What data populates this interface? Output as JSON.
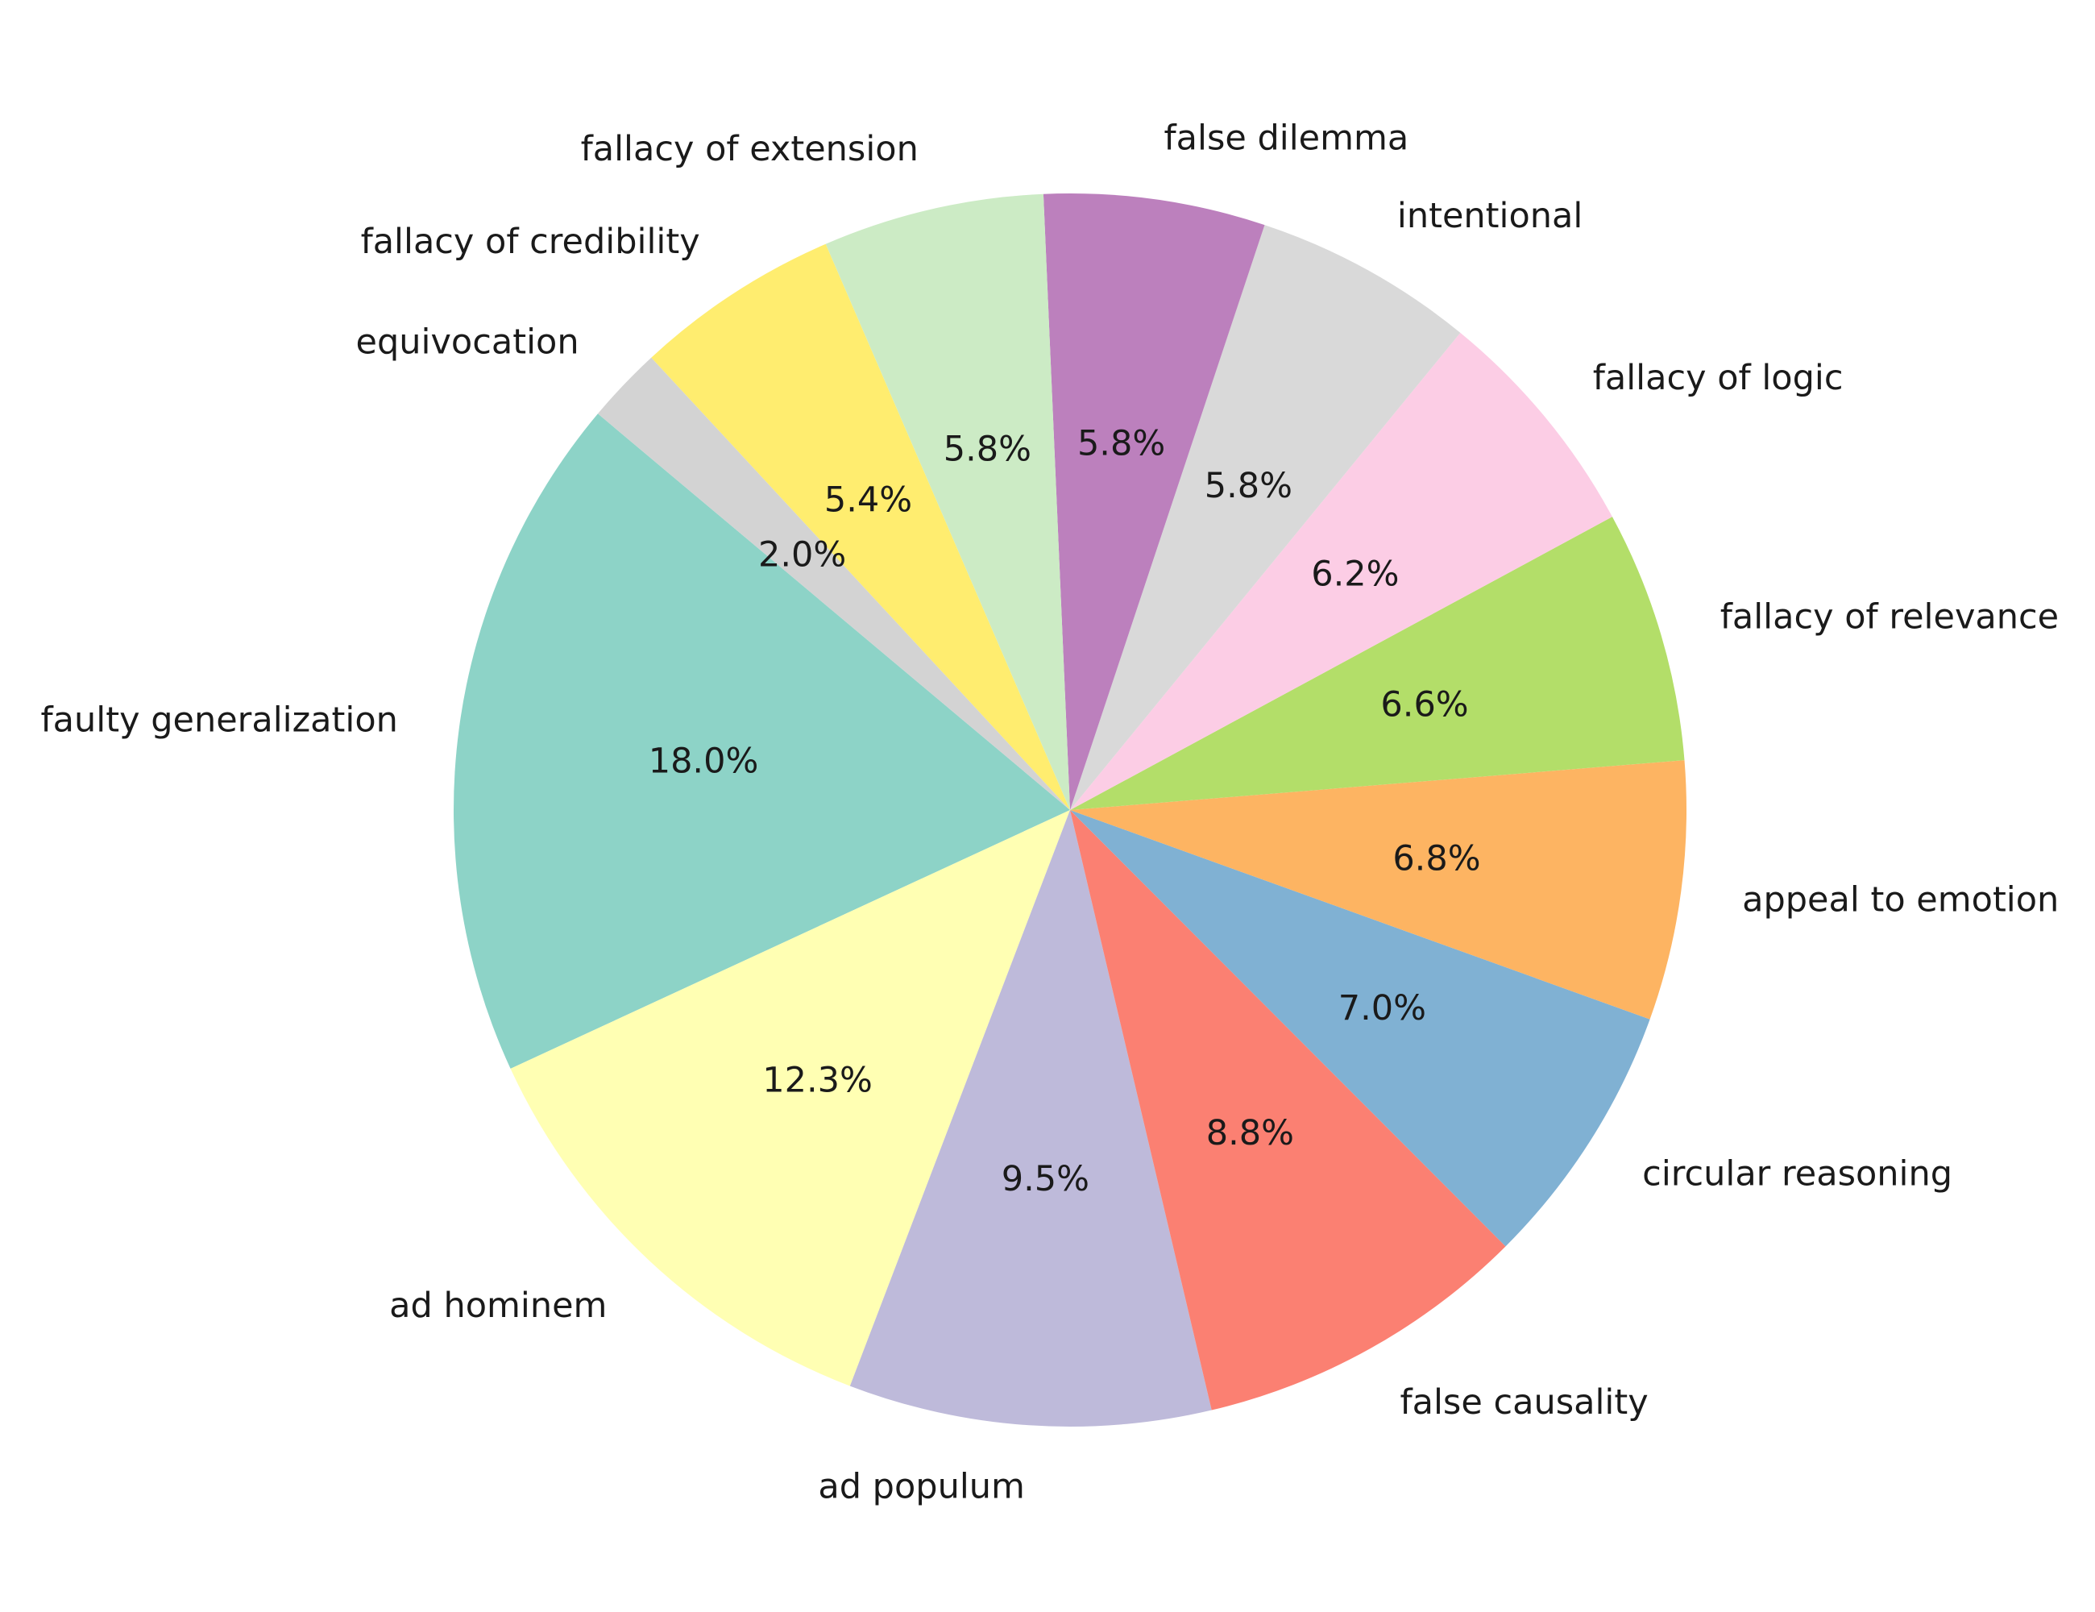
{
  "chart_data": {
    "type": "pie",
    "categories": [
      "faulty generalization",
      "ad hominem",
      "ad populum",
      "false causality",
      "circular reasoning",
      "appeal to emotion",
      "fallacy of relevance",
      "fallacy of logic",
      "intentional",
      "false dilemma",
      "fallacy of extension",
      "fallacy of credibility",
      "equivocation"
    ],
    "values": [
      18.0,
      12.3,
      9.5,
      8.8,
      7.0,
      6.8,
      6.6,
      6.2,
      5.8,
      5.8,
      5.8,
      5.4,
      2.0
    ],
    "percent_labels": [
      "18.0%",
      "12.3%",
      "9.5%",
      "8.8%",
      "7.0%",
      "6.8%",
      "6.6%",
      "6.2%",
      "5.8%",
      "5.8%",
      "5.8%",
      "5.4%",
      "2.0%"
    ],
    "colors": [
      "#8dd3c7",
      "#ffffb3",
      "#bebada",
      "#fb8072",
      "#80b1d3",
      "#fdb462",
      "#b3de69",
      "#fccde5",
      "#d9d9d9",
      "#bc80bd",
      "#ccebc5",
      "#ffed6f",
      "#d3d3d3"
    ],
    "start_angle_deg": 140,
    "direction": "counterclockwise",
    "title": ""
  }
}
